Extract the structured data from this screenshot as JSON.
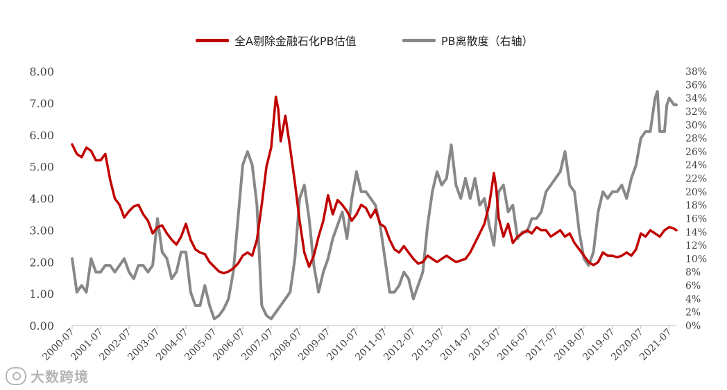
{
  "legend": {
    "left_label": "全A剔除金融石化PB估值",
    "right_label": "PB离散度（右轴）"
  },
  "watermark": {
    "text": "大数跨境",
    "icon": "brand-logo-icon"
  },
  "colors": {
    "left": "#C00000",
    "right": "#888888",
    "axis": "#BFBFBF",
    "text": "#444444"
  },
  "chart_data": {
    "type": "line",
    "title": "",
    "xlabel": "",
    "ylabel": "",
    "x_ticks": [
      "2000-07",
      "2001-07",
      "2002-07",
      "2003-07",
      "2004-07",
      "2005-07",
      "2006-07",
      "2007-07",
      "2008-07",
      "2009-07",
      "2010-07",
      "2011-07",
      "2012-07",
      "2013-07",
      "2014-07",
      "2015-07",
      "2016-07",
      "2017-07",
      "2018-07",
      "2019-07",
      "2020-07",
      "2021-07"
    ],
    "x_range": [
      "2000-07",
      "2021-10"
    ],
    "y_left": {
      "range": [
        0,
        8
      ],
      "ticks": [
        "0.00",
        "1.00",
        "2.00",
        "3.00",
        "4.00",
        "5.00",
        "6.00",
        "7.00",
        "8.00"
      ]
    },
    "y_right": {
      "range": [
        0,
        38
      ],
      "ticks": [
        "0%",
        "2%",
        "4%",
        "6%",
        "8%",
        "10%",
        "12%",
        "14%",
        "16%",
        "18%",
        "20%",
        "22%",
        "24%",
        "26%",
        "28%",
        "30%",
        "32%",
        "34%",
        "36%",
        "38%"
      ]
    },
    "grid": false,
    "legend_position": "top-center",
    "series": [
      {
        "name": "全A剔除金融石化PB估值",
        "axis": "left",
        "color": "#C00000",
        "points": [
          [
            "2000-07",
            5.7
          ],
          [
            "2000-09",
            5.4
          ],
          [
            "2000-11",
            5.3
          ],
          [
            "2001-01",
            5.6
          ],
          [
            "2001-03",
            5.5
          ],
          [
            "2001-05",
            5.2
          ],
          [
            "2001-07",
            5.2
          ],
          [
            "2001-09",
            5.4
          ],
          [
            "2001-11",
            4.6
          ],
          [
            "2002-01",
            4.0
          ],
          [
            "2002-03",
            3.8
          ],
          [
            "2002-05",
            3.4
          ],
          [
            "2002-07",
            3.6
          ],
          [
            "2002-09",
            3.75
          ],
          [
            "2002-11",
            3.8
          ],
          [
            "2003-01",
            3.5
          ],
          [
            "2003-03",
            3.3
          ],
          [
            "2003-05",
            2.9
          ],
          [
            "2003-07",
            3.1
          ],
          [
            "2003-09",
            3.15
          ],
          [
            "2003-11",
            2.9
          ],
          [
            "2004-01",
            2.7
          ],
          [
            "2004-03",
            2.55
          ],
          [
            "2004-05",
            2.8
          ],
          [
            "2004-07",
            3.2
          ],
          [
            "2004-09",
            2.7
          ],
          [
            "2004-11",
            2.4
          ],
          [
            "2005-01",
            2.3
          ],
          [
            "2005-03",
            2.25
          ],
          [
            "2005-05",
            2.0
          ],
          [
            "2005-07",
            1.85
          ],
          [
            "2005-09",
            1.7
          ],
          [
            "2005-11",
            1.65
          ],
          [
            "2006-01",
            1.7
          ],
          [
            "2006-03",
            1.8
          ],
          [
            "2006-05",
            1.95
          ],
          [
            "2006-07",
            2.2
          ],
          [
            "2006-09",
            2.3
          ],
          [
            "2006-11",
            2.2
          ],
          [
            "2007-01",
            2.7
          ],
          [
            "2007-03",
            3.8
          ],
          [
            "2007-05",
            5.0
          ],
          [
            "2007-07",
            5.6
          ],
          [
            "2007-09",
            7.2
          ],
          [
            "2007-10",
            6.8
          ],
          [
            "2007-11",
            5.8
          ],
          [
            "2008-01",
            6.6
          ],
          [
            "2008-03",
            5.6
          ],
          [
            "2008-05",
            4.5
          ],
          [
            "2008-07",
            3.3
          ],
          [
            "2008-09",
            2.3
          ],
          [
            "2008-11",
            1.85
          ],
          [
            "2009-01",
            2.2
          ],
          [
            "2009-03",
            2.8
          ],
          [
            "2009-05",
            3.3
          ],
          [
            "2009-07",
            4.1
          ],
          [
            "2009-09",
            3.5
          ],
          [
            "2009-11",
            3.95
          ],
          [
            "2010-01",
            3.8
          ],
          [
            "2010-03",
            3.6
          ],
          [
            "2010-05",
            3.3
          ],
          [
            "2010-07",
            3.5
          ],
          [
            "2010-09",
            3.8
          ],
          [
            "2010-11",
            3.7
          ],
          [
            "2011-01",
            3.4
          ],
          [
            "2011-03",
            3.65
          ],
          [
            "2011-05",
            3.2
          ],
          [
            "2011-07",
            3.1
          ],
          [
            "2011-09",
            2.7
          ],
          [
            "2011-11",
            2.4
          ],
          [
            "2012-01",
            2.3
          ],
          [
            "2012-03",
            2.5
          ],
          [
            "2012-05",
            2.3
          ],
          [
            "2012-07",
            2.1
          ],
          [
            "2012-09",
            1.95
          ],
          [
            "2012-11",
            2.0
          ],
          [
            "2013-01",
            2.2
          ],
          [
            "2013-03",
            2.1
          ],
          [
            "2013-05",
            2.0
          ],
          [
            "2013-07",
            2.1
          ],
          [
            "2013-09",
            2.2
          ],
          [
            "2013-11",
            2.1
          ],
          [
            "2014-01",
            2.0
          ],
          [
            "2014-03",
            2.05
          ],
          [
            "2014-05",
            2.1
          ],
          [
            "2014-07",
            2.3
          ],
          [
            "2014-09",
            2.6
          ],
          [
            "2014-11",
            2.9
          ],
          [
            "2015-01",
            3.2
          ],
          [
            "2015-03",
            3.8
          ],
          [
            "2015-05",
            4.8
          ],
          [
            "2015-06",
            4.3
          ],
          [
            "2015-07",
            3.4
          ],
          [
            "2015-09",
            2.8
          ],
          [
            "2015-11",
            3.2
          ],
          [
            "2016-01",
            2.6
          ],
          [
            "2016-03",
            2.8
          ],
          [
            "2016-05",
            2.9
          ],
          [
            "2016-07",
            3.0
          ],
          [
            "2016-09",
            2.9
          ],
          [
            "2016-11",
            3.1
          ],
          [
            "2017-01",
            3.0
          ],
          [
            "2017-03",
            3.0
          ],
          [
            "2017-05",
            2.8
          ],
          [
            "2017-07",
            2.9
          ],
          [
            "2017-09",
            3.0
          ],
          [
            "2017-11",
            2.8
          ],
          [
            "2018-01",
            2.9
          ],
          [
            "2018-03",
            2.6
          ],
          [
            "2018-05",
            2.4
          ],
          [
            "2018-07",
            2.2
          ],
          [
            "2018-09",
            2.0
          ],
          [
            "2018-11",
            1.9
          ],
          [
            "2019-01",
            2.0
          ],
          [
            "2019-03",
            2.3
          ],
          [
            "2019-05",
            2.2
          ],
          [
            "2019-07",
            2.2
          ],
          [
            "2019-09",
            2.15
          ],
          [
            "2019-11",
            2.2
          ],
          [
            "2020-01",
            2.3
          ],
          [
            "2020-03",
            2.2
          ],
          [
            "2020-05",
            2.4
          ],
          [
            "2020-07",
            2.9
          ],
          [
            "2020-09",
            2.8
          ],
          [
            "2020-11",
            3.0
          ],
          [
            "2021-01",
            2.9
          ],
          [
            "2021-03",
            2.8
          ],
          [
            "2021-05",
            3.0
          ],
          [
            "2021-07",
            3.1
          ],
          [
            "2021-09",
            3.05
          ],
          [
            "2021-10",
            3.0
          ]
        ]
      },
      {
        "name": "PB离散度（右轴）",
        "axis": "right",
        "color": "#888888",
        "points": [
          [
            "2000-07",
            10
          ],
          [
            "2000-09",
            5
          ],
          [
            "2000-11",
            6
          ],
          [
            "2001-01",
            5
          ],
          [
            "2001-03",
            10
          ],
          [
            "2001-05",
            8
          ],
          [
            "2001-07",
            8
          ],
          [
            "2001-09",
            9
          ],
          [
            "2001-11",
            9
          ],
          [
            "2002-01",
            8
          ],
          [
            "2002-03",
            9
          ],
          [
            "2002-05",
            10
          ],
          [
            "2002-07",
            8
          ],
          [
            "2002-09",
            7
          ],
          [
            "2002-11",
            9
          ],
          [
            "2003-01",
            9
          ],
          [
            "2003-03",
            8
          ],
          [
            "2003-05",
            9
          ],
          [
            "2003-07",
            16
          ],
          [
            "2003-09",
            11
          ],
          [
            "2003-11",
            10
          ],
          [
            "2004-01",
            7
          ],
          [
            "2004-03",
            8
          ],
          [
            "2004-05",
            11
          ],
          [
            "2004-07",
            11
          ],
          [
            "2004-09",
            5
          ],
          [
            "2004-11",
            3
          ],
          [
            "2005-01",
            3
          ],
          [
            "2005-03",
            6
          ],
          [
            "2005-05",
            3
          ],
          [
            "2005-07",
            1
          ],
          [
            "2005-09",
            1.5
          ],
          [
            "2005-11",
            2.5
          ],
          [
            "2006-01",
            4
          ],
          [
            "2006-03",
            8
          ],
          [
            "2006-05",
            16
          ],
          [
            "2006-07",
            24
          ],
          [
            "2006-09",
            26
          ],
          [
            "2006-11",
            24
          ],
          [
            "2007-01",
            18
          ],
          [
            "2007-03",
            3
          ],
          [
            "2007-05",
            1.5
          ],
          [
            "2007-07",
            1
          ],
          [
            "2007-09",
            2
          ],
          [
            "2007-11",
            3
          ],
          [
            "2008-01",
            4
          ],
          [
            "2008-03",
            5
          ],
          [
            "2008-05",
            10
          ],
          [
            "2008-07",
            19
          ],
          [
            "2008-09",
            21
          ],
          [
            "2008-11",
            16
          ],
          [
            "2009-01",
            9
          ],
          [
            "2009-03",
            5
          ],
          [
            "2009-05",
            8
          ],
          [
            "2009-07",
            10
          ],
          [
            "2009-09",
            13
          ],
          [
            "2009-11",
            15
          ],
          [
            "2010-01",
            17
          ],
          [
            "2010-03",
            13
          ],
          [
            "2010-05",
            19
          ],
          [
            "2010-07",
            23
          ],
          [
            "2010-09",
            20
          ],
          [
            "2010-11",
            20
          ],
          [
            "2011-01",
            19
          ],
          [
            "2011-03",
            18
          ],
          [
            "2011-05",
            15
          ],
          [
            "2011-07",
            10
          ],
          [
            "2011-09",
            5
          ],
          [
            "2011-11",
            5
          ],
          [
            "2012-01",
            6
          ],
          [
            "2012-03",
            8
          ],
          [
            "2012-05",
            7
          ],
          [
            "2012-07",
            4
          ],
          [
            "2012-09",
            6
          ],
          [
            "2012-11",
            8
          ],
          [
            "2013-01",
            15
          ],
          [
            "2013-03",
            20
          ],
          [
            "2013-05",
            23
          ],
          [
            "2013-07",
            21
          ],
          [
            "2013-09",
            22
          ],
          [
            "2013-11",
            27
          ],
          [
            "2014-01",
            21
          ],
          [
            "2014-03",
            19
          ],
          [
            "2014-05",
            22
          ],
          [
            "2014-07",
            19
          ],
          [
            "2014-09",
            22
          ],
          [
            "2014-11",
            18
          ],
          [
            "2015-01",
            19
          ],
          [
            "2015-03",
            15
          ],
          [
            "2015-05",
            12
          ],
          [
            "2015-07",
            20
          ],
          [
            "2015-09",
            21
          ],
          [
            "2015-11",
            17
          ],
          [
            "2016-01",
            18
          ],
          [
            "2016-03",
            13
          ],
          [
            "2016-05",
            14
          ],
          [
            "2016-07",
            14
          ],
          [
            "2016-09",
            16
          ],
          [
            "2016-11",
            16
          ],
          [
            "2017-01",
            17
          ],
          [
            "2017-03",
            20
          ],
          [
            "2017-05",
            21
          ],
          [
            "2017-07",
            22
          ],
          [
            "2017-09",
            23
          ],
          [
            "2017-11",
            26
          ],
          [
            "2018-01",
            21
          ],
          [
            "2018-03",
            20
          ],
          [
            "2018-05",
            14
          ],
          [
            "2018-07",
            10
          ],
          [
            "2018-09",
            9
          ],
          [
            "2018-11",
            11
          ],
          [
            "2019-01",
            17
          ],
          [
            "2019-03",
            20
          ],
          [
            "2019-05",
            19
          ],
          [
            "2019-07",
            20
          ],
          [
            "2019-09",
            20
          ],
          [
            "2019-11",
            21
          ],
          [
            "2020-01",
            19
          ],
          [
            "2020-03",
            22
          ],
          [
            "2020-05",
            24
          ],
          [
            "2020-07",
            28
          ],
          [
            "2020-09",
            29
          ],
          [
            "2020-11",
            29
          ],
          [
            "2021-01",
            34
          ],
          [
            "2021-02",
            35
          ],
          [
            "2021-03",
            29
          ],
          [
            "2021-05",
            29
          ],
          [
            "2021-06",
            33
          ],
          [
            "2021-07",
            34
          ],
          [
            "2021-09",
            33
          ],
          [
            "2021-10",
            33
          ]
        ]
      }
    ]
  }
}
